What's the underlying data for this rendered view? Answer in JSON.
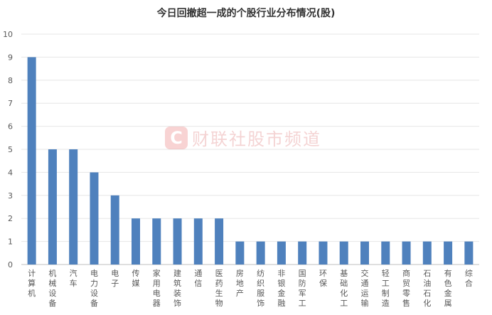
{
  "chart_data": {
    "type": "bar",
    "title": "今日回撤超一成的个股行业分布情况(股)",
    "xlabel": "",
    "ylabel": "",
    "ylim": [
      0,
      10
    ],
    "yticks": [
      0,
      1,
      2,
      3,
      4,
      5,
      6,
      7,
      8,
      9,
      10
    ],
    "grid": true,
    "legend": "none",
    "bar_color": "#4f81bd",
    "categories": [
      "计算机",
      "机械设备",
      "汽车",
      "电力设备",
      "电子",
      "传媒",
      "家用电器",
      "建筑装饰",
      "通信",
      "医药生物",
      "房地产",
      "纺织服饰",
      "非银金融",
      "国防军工",
      "环保",
      "基础化工",
      "交通运输",
      "轻工制造",
      "商贸零售",
      "石油石化",
      "有色金属",
      "综合"
    ],
    "values": [
      9,
      5,
      5,
      4,
      3,
      2,
      2,
      2,
      2,
      2,
      1,
      1,
      1,
      1,
      1,
      1,
      1,
      1,
      1,
      1,
      1,
      1
    ]
  },
  "watermark": {
    "logo_letter": "C",
    "text": "财联社股市频道",
    "color": "#d23a3a"
  }
}
